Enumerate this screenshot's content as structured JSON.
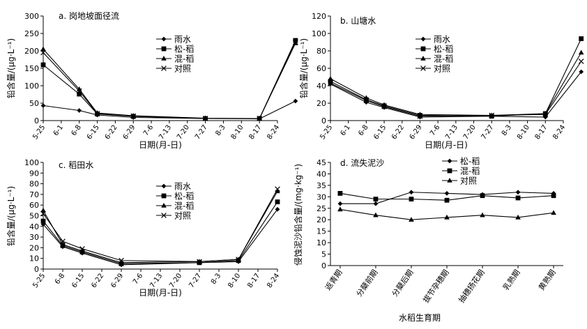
{
  "chart_data": [
    {
      "id": "a",
      "type": "line",
      "title": "a. 岗地坡面径流",
      "xlabel": "日期(月-日)",
      "ylabel": "铅含量/(μg·L⁻¹)",
      "ylim": [
        0,
        300
      ],
      "yticks": [
        0,
        50,
        100,
        150,
        200,
        250,
        300
      ],
      "categories": [
        "5-25",
        "6-1",
        "6-8",
        "6-15",
        "6-22",
        "6-29",
        "7-6",
        "7-13",
        "7-20",
        "7-27",
        "8-3",
        "8-10",
        "8-17",
        "8-24"
      ],
      "legend_position": "top-right",
      "series": [
        {
          "name": "雨水",
          "marker": "diamond",
          "points": [
            [
              0,
              43
            ],
            [
              2,
              29
            ],
            [
              3,
              16
            ],
            [
              5,
              9
            ],
            [
              9,
              6
            ],
            [
              12,
              5
            ],
            [
              14,
              56
            ]
          ]
        },
        {
          "name": "松-稻",
          "marker": "square",
          "points": [
            [
              0,
              160
            ],
            [
              2,
              76
            ],
            [
              3,
              19
            ],
            [
              5,
              12
            ],
            [
              9,
              6
            ],
            [
              12,
              6
            ],
            [
              14,
              230
            ]
          ]
        },
        {
          "name": "混-稻",
          "marker": "triangle",
          "points": [
            [
              0,
              205
            ],
            [
              2,
              90
            ],
            [
              3,
              22
            ],
            [
              5,
              14
            ],
            [
              9,
              7
            ],
            [
              12,
              6
            ],
            [
              14,
              222
            ]
          ]
        },
        {
          "name": "对照",
          "marker": "x",
          "points": [
            [
              0,
              195
            ],
            [
              2,
              85
            ],
            [
              3,
              20
            ],
            [
              5,
              13
            ],
            [
              9,
              6
            ],
            [
              12,
              6
            ],
            [
              14,
              225
            ]
          ]
        }
      ]
    },
    {
      "id": "b",
      "type": "line",
      "title": "b. 山塘水",
      "xlabel": "日期(月-日)",
      "ylabel": "铅含量/(μg·L⁻¹)",
      "ylim": [
        0,
        120
      ],
      "yticks": [
        0,
        20,
        40,
        60,
        80,
        100,
        120
      ],
      "categories": [
        "5-25",
        "6-1",
        "6-8",
        "6-15",
        "6-22",
        "6-29",
        "7-6",
        "7-13",
        "7-20",
        "7-27",
        "8-3",
        "8-10",
        "8-17",
        "8-24"
      ],
      "legend_position": "top-right",
      "series": [
        {
          "name": "雨水",
          "marker": "diamond",
          "points": [
            [
              0,
              42
            ],
            [
              2,
              21
            ],
            [
              3,
              15
            ],
            [
              5,
              4
            ],
            [
              9,
              5
            ],
            [
              12,
              4
            ],
            [
              14,
              56
            ]
          ]
        },
        {
          "name": "松-稻",
          "marker": "square",
          "points": [
            [
              0,
              45
            ],
            [
              2,
              24
            ],
            [
              3,
              17
            ],
            [
              5,
              6
            ],
            [
              9,
              5
            ],
            [
              12,
              8
            ],
            [
              14,
              94
            ]
          ]
        },
        {
          "name": "混-稻",
          "marker": "triangle",
          "points": [
            [
              0,
              48
            ],
            [
              2,
              26
            ],
            [
              3,
              18
            ],
            [
              5,
              7
            ],
            [
              9,
              6
            ],
            [
              12,
              8
            ],
            [
              14,
              78
            ]
          ]
        },
        {
          "name": "对照",
          "marker": "x",
          "points": [
            [
              0,
              43
            ],
            [
              2,
              23
            ],
            [
              3,
              16
            ],
            [
              5,
              5
            ],
            [
              9,
              6
            ],
            [
              12,
              7
            ],
            [
              14,
              68
            ]
          ]
        }
      ]
    },
    {
      "id": "c",
      "type": "line",
      "title": "c. 稻田水",
      "xlabel": "日期(月-日)",
      "ylabel": "铅含量/(μg·L⁻¹)",
      "ylim": [
        0,
        100
      ],
      "yticks": [
        0,
        10,
        20,
        30,
        40,
        50,
        60,
        70,
        80,
        90,
        100
      ],
      "categories": [
        "5-25",
        "6-8",
        "6-15",
        "6-22",
        "6-29",
        "7-6",
        "7-13",
        "7-20",
        "7-27",
        "8-3",
        "8-10",
        "8-17",
        "8-24"
      ],
      "legend_position": "top-right",
      "series": [
        {
          "name": "雨水",
          "marker": "diamond",
          "points": [
            [
              0,
              42
            ],
            [
              1,
              21
            ],
            [
              2,
              15
            ],
            [
              4,
              4
            ],
            [
              8,
              6
            ],
            [
              10,
              7
            ],
            [
              12,
              56
            ]
          ]
        },
        {
          "name": "松-稻",
          "marker": "square",
          "points": [
            [
              0,
              45
            ],
            [
              1,
              22
            ],
            [
              2,
              16
            ],
            [
              4,
              5
            ],
            [
              8,
              6
            ],
            [
              10,
              8
            ],
            [
              12,
              63
            ]
          ]
        },
        {
          "name": "混-稻",
          "marker": "triangle",
          "points": [
            [
              0,
              55
            ],
            [
              1,
              23
            ],
            [
              2,
              17
            ],
            [
              4,
              6
            ],
            [
              8,
              7
            ],
            [
              10,
              9
            ],
            [
              12,
              73
            ]
          ]
        },
        {
          "name": "对照",
          "marker": "x",
          "points": [
            [
              0,
              52
            ],
            [
              1,
              26
            ],
            [
              2,
              19
            ],
            [
              4,
              8
            ],
            [
              8,
              7
            ],
            [
              10,
              9
            ],
            [
              12,
              75
            ]
          ]
        }
      ]
    },
    {
      "id": "d",
      "type": "line",
      "title": "d. 流失泥沙",
      "xlabel": "水稻生育期",
      "ylabel": "侵蚀泥沙铅含量/(mg·kg⁻¹)",
      "ylim": [
        0,
        45
      ],
      "yticks": [
        0,
        5,
        10,
        15,
        20,
        25,
        30,
        35,
        40,
        45
      ],
      "categories": [
        "返青期",
        "分蘖前期",
        "分蘖后期",
        "拔节孕穗期",
        "抽穗扬花期",
        "乳熟期",
        "黄熟期"
      ],
      "legend_position": "top-right",
      "series": [
        {
          "name": "松-稻",
          "marker": "diamond",
          "values": [
            27,
            27,
            32,
            31.5,
            31,
            32,
            31.5
          ]
        },
        {
          "name": "混-稻",
          "marker": "square",
          "values": [
            31.5,
            29,
            29,
            28.5,
            30.5,
            29.5,
            30.5
          ]
        },
        {
          "name": "对照",
          "marker": "triangle",
          "values": [
            24.5,
            22,
            20,
            21,
            22,
            21,
            23
          ]
        }
      ]
    }
  ]
}
